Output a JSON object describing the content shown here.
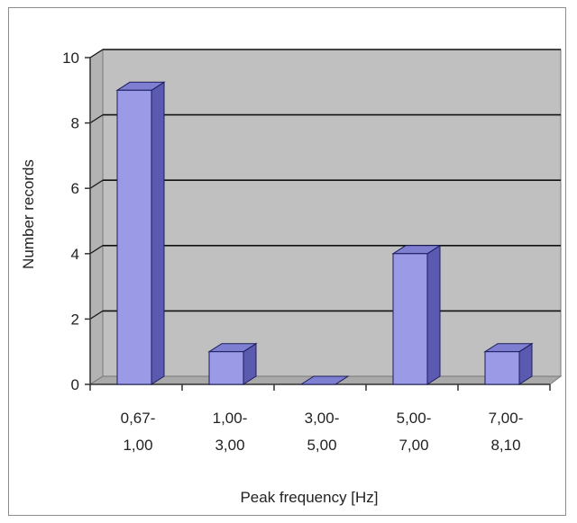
{
  "chart_data": {
    "type": "bar",
    "style": "3d",
    "title": "",
    "xlabel": "Peak frequency [Hz]",
    "ylabel": "Number records",
    "ylim": [
      0,
      10
    ],
    "yticks": [
      "0",
      "2",
      "4",
      "6",
      "8",
      "10"
    ],
    "grid": true,
    "legend": false,
    "categories": [
      [
        "0,67-",
        "1,00"
      ],
      [
        "1,00-",
        "3,00"
      ],
      [
        "3,00-",
        "5,00"
      ],
      [
        "5,00-",
        "7,00"
      ],
      [
        "7,00-",
        "8,10"
      ]
    ],
    "values": [
      9,
      1,
      0,
      4,
      1
    ]
  },
  "colors": {
    "bar_front": "#9a9ae6",
    "bar_top": "#7f7fd2",
    "bar_side": "#5a5ab0",
    "bar_stroke": "#1c1c5e",
    "wall": "#c0c0c0",
    "floor": "#a9a9a9",
    "grid": "#111111"
  }
}
